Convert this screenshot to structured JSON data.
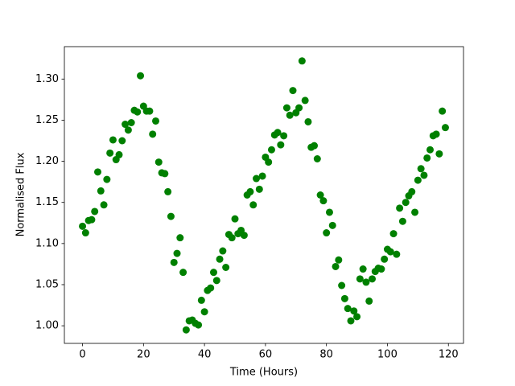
{
  "chart_data": {
    "type": "scatter",
    "xlabel": "Time (Hours)",
    "ylabel": "Normalised Flux",
    "color": "#008000",
    "x": [
      0,
      1,
      2,
      3,
      4,
      5,
      6,
      7,
      8,
      9,
      10,
      11,
      12,
      13,
      14,
      15,
      16,
      17,
      18,
      19,
      20,
      21,
      22,
      23,
      24,
      25,
      26,
      27,
      28,
      29,
      30,
      31,
      32,
      33,
      34,
      35,
      36,
      37,
      38,
      39,
      40,
      41,
      42,
      43,
      44,
      45,
      46,
      47,
      48,
      49,
      50,
      51,
      52,
      53,
      54,
      55,
      56,
      57,
      58,
      59,
      60,
      61,
      62,
      63,
      64,
      65,
      66,
      67,
      68,
      69,
      70,
      71,
      72,
      73,
      74,
      75,
      76,
      77,
      78,
      79,
      80,
      81,
      82,
      83,
      84,
      85,
      86,
      87,
      88,
      89,
      90,
      91,
      92,
      93,
      94,
      95,
      96,
      97,
      98,
      99,
      100,
      101,
      102,
      103,
      104,
      105,
      106,
      107,
      108,
      109,
      110,
      111,
      112,
      113,
      114,
      115,
      116,
      117,
      118,
      119
    ],
    "values": [
      1.121,
      1.113,
      1.128,
      1.129,
      1.139,
      1.187,
      1.164,
      1.147,
      1.178,
      1.21,
      1.226,
      1.202,
      1.208,
      1.225,
      1.245,
      1.238,
      1.247,
      1.262,
      1.26,
      1.304,
      1.267,
      1.261,
      1.261,
      1.233,
      1.249,
      1.199,
      1.186,
      1.185,
      1.163,
      1.133,
      1.077,
      1.088,
      1.107,
      1.065,
      0.995,
      1.006,
      1.007,
      1.003,
      1.001,
      1.031,
      1.017,
      1.043,
      1.046,
      1.065,
      1.055,
      1.081,
      1.091,
      1.071,
      1.111,
      1.107,
      1.13,
      1.112,
      1.116,
      1.11,
      1.159,
      1.163,
      1.147,
      1.179,
      1.166,
      1.182,
      1.205,
      1.199,
      1.214,
      1.232,
      1.235,
      1.22,
      1.231,
      1.265,
      1.256,
      1.286,
      1.259,
      1.265,
      1.322,
      1.274,
      1.248,
      1.217,
      1.219,
      1.203,
      1.159,
      1.152,
      1.113,
      1.138,
      1.122,
      1.072,
      1.08,
      1.049,
      1.033,
      1.021,
      1.006,
      1.018,
      1.011,
      1.057,
      1.069,
      1.053,
      1.03,
      1.057,
      1.066,
      1.07,
      1.069,
      1.081,
      1.093,
      1.09,
      1.112,
      1.087,
      1.143,
      1.127,
      1.15,
      1.158,
      1.163,
      1.138,
      1.177,
      1.191,
      1.183,
      1.204,
      1.214,
      1.231,
      1.233,
      1.209,
      1.261,
      1.241
    ],
    "xlim": [
      -5.95,
      124.95
    ],
    "xticks": [
      0,
      20,
      40,
      60,
      80,
      100,
      120
    ],
    "ylim": [
      0.9786,
      1.3394
    ],
    "yticks": [
      {
        "value": 1.0,
        "label": "1.00"
      },
      1.05,
      {
        "value": 1.1,
        "label": "1.10"
      },
      1.15,
      {
        "value": 1.2,
        "label": "1.20"
      },
      1.25,
      {
        "value": 1.3,
        "label": "1.30"
      }
    ]
  }
}
